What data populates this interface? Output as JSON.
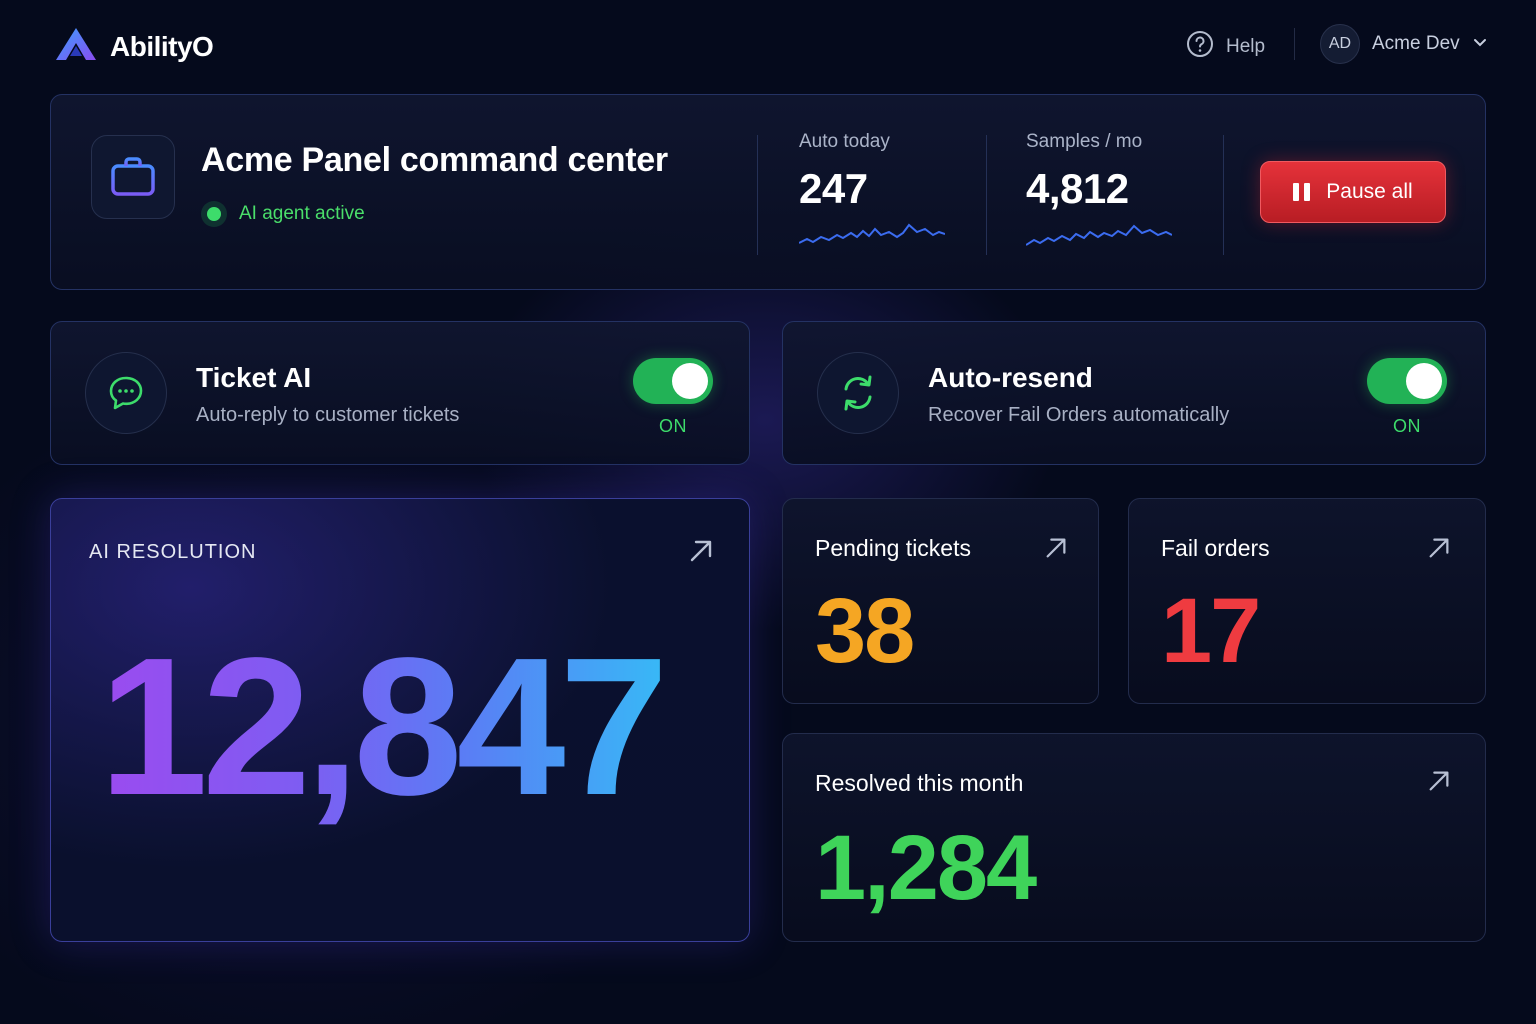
{
  "brand": {
    "name": "AbilityO"
  },
  "nav": {
    "help_label": "Help",
    "avatar_initials": "AD",
    "user_name": "Acme Dev"
  },
  "hero": {
    "title": "Acme Panel command center",
    "status": "AI agent active",
    "stats": [
      {
        "label": "Auto today",
        "value": "247"
      },
      {
        "label": "Samples / mo",
        "value": "4,812"
      }
    ],
    "pause_label": "Pause all"
  },
  "toggles": [
    {
      "title": "Ticket AI",
      "subtitle": "Auto-reply to customer tickets",
      "state": "ON"
    },
    {
      "title": "Auto-resend",
      "subtitle": "Recover Fail Orders automatically",
      "state": "ON"
    }
  ],
  "ai_resolution": {
    "label": "AI RESOLUTION",
    "value": "12,847"
  },
  "metrics": {
    "pending": {
      "title": "Pending tickets",
      "value": "38",
      "color": "#f5a623"
    },
    "fail": {
      "title": "Fail orders",
      "value": "17",
      "color": "#ef3b40"
    },
    "resolved": {
      "title": "Resolved this month",
      "value": "1,284",
      "color": "#3fd45a"
    }
  },
  "colors": {
    "accent": "#4f6cf5",
    "success": "#3ddc6b",
    "danger": "#e5323a",
    "background": "#050a1c"
  },
  "icons": [
    "logo-icon",
    "help-icon",
    "chevron-down-icon",
    "briefcase-icon",
    "chat-icon",
    "refresh-icon",
    "arrow-up-right-icon",
    "pause-icon"
  ]
}
